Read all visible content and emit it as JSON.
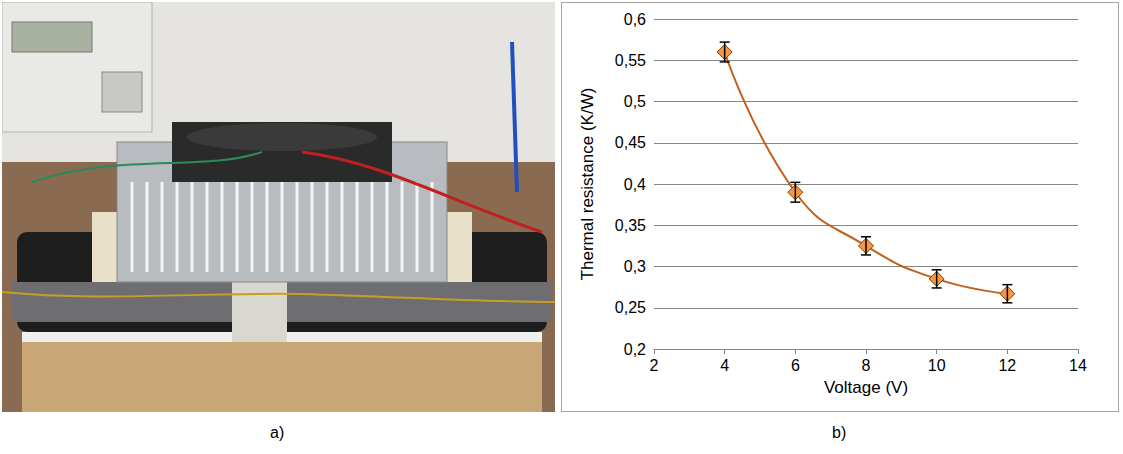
{
  "panel_labels": [
    "a)",
    "b)"
  ],
  "chart_data": {
    "type": "line",
    "x": [
      4,
      6,
      8,
      10,
      12
    ],
    "series": [
      {
        "values": [
          0.56,
          0.39,
          0.325,
          0.285,
          0.267
        ],
        "errors": [
          0.012,
          0.012,
          0.011,
          0.011,
          0.011
        ],
        "color": "#c0601a",
        "marker": "diamond",
        "line_style": "solid"
      }
    ],
    "xlabel": "Voltage (V)",
    "ylabel": "Thermal resistance (K/W)",
    "xlim": [
      2,
      14
    ],
    "xticks": [
      2,
      4,
      6,
      8,
      10,
      12,
      14
    ],
    "ylim": [
      0.2,
      0.6
    ],
    "yticks": [
      {
        "value": 0.2,
        "label": "0,2"
      },
      {
        "value": 0.25,
        "label": "0,25"
      },
      {
        "value": 0.3,
        "label": "0,3"
      },
      {
        "value": 0.35,
        "label": "0,35"
      },
      {
        "value": 0.4,
        "label": "0,4"
      },
      {
        "value": 0.45,
        "label": "0,45"
      },
      {
        "value": 0.5,
        "label": "0,5"
      },
      {
        "value": 0.55,
        "label": "0,55"
      },
      {
        "value": 0.6,
        "label": "0,6"
      }
    ],
    "grid": true
  }
}
